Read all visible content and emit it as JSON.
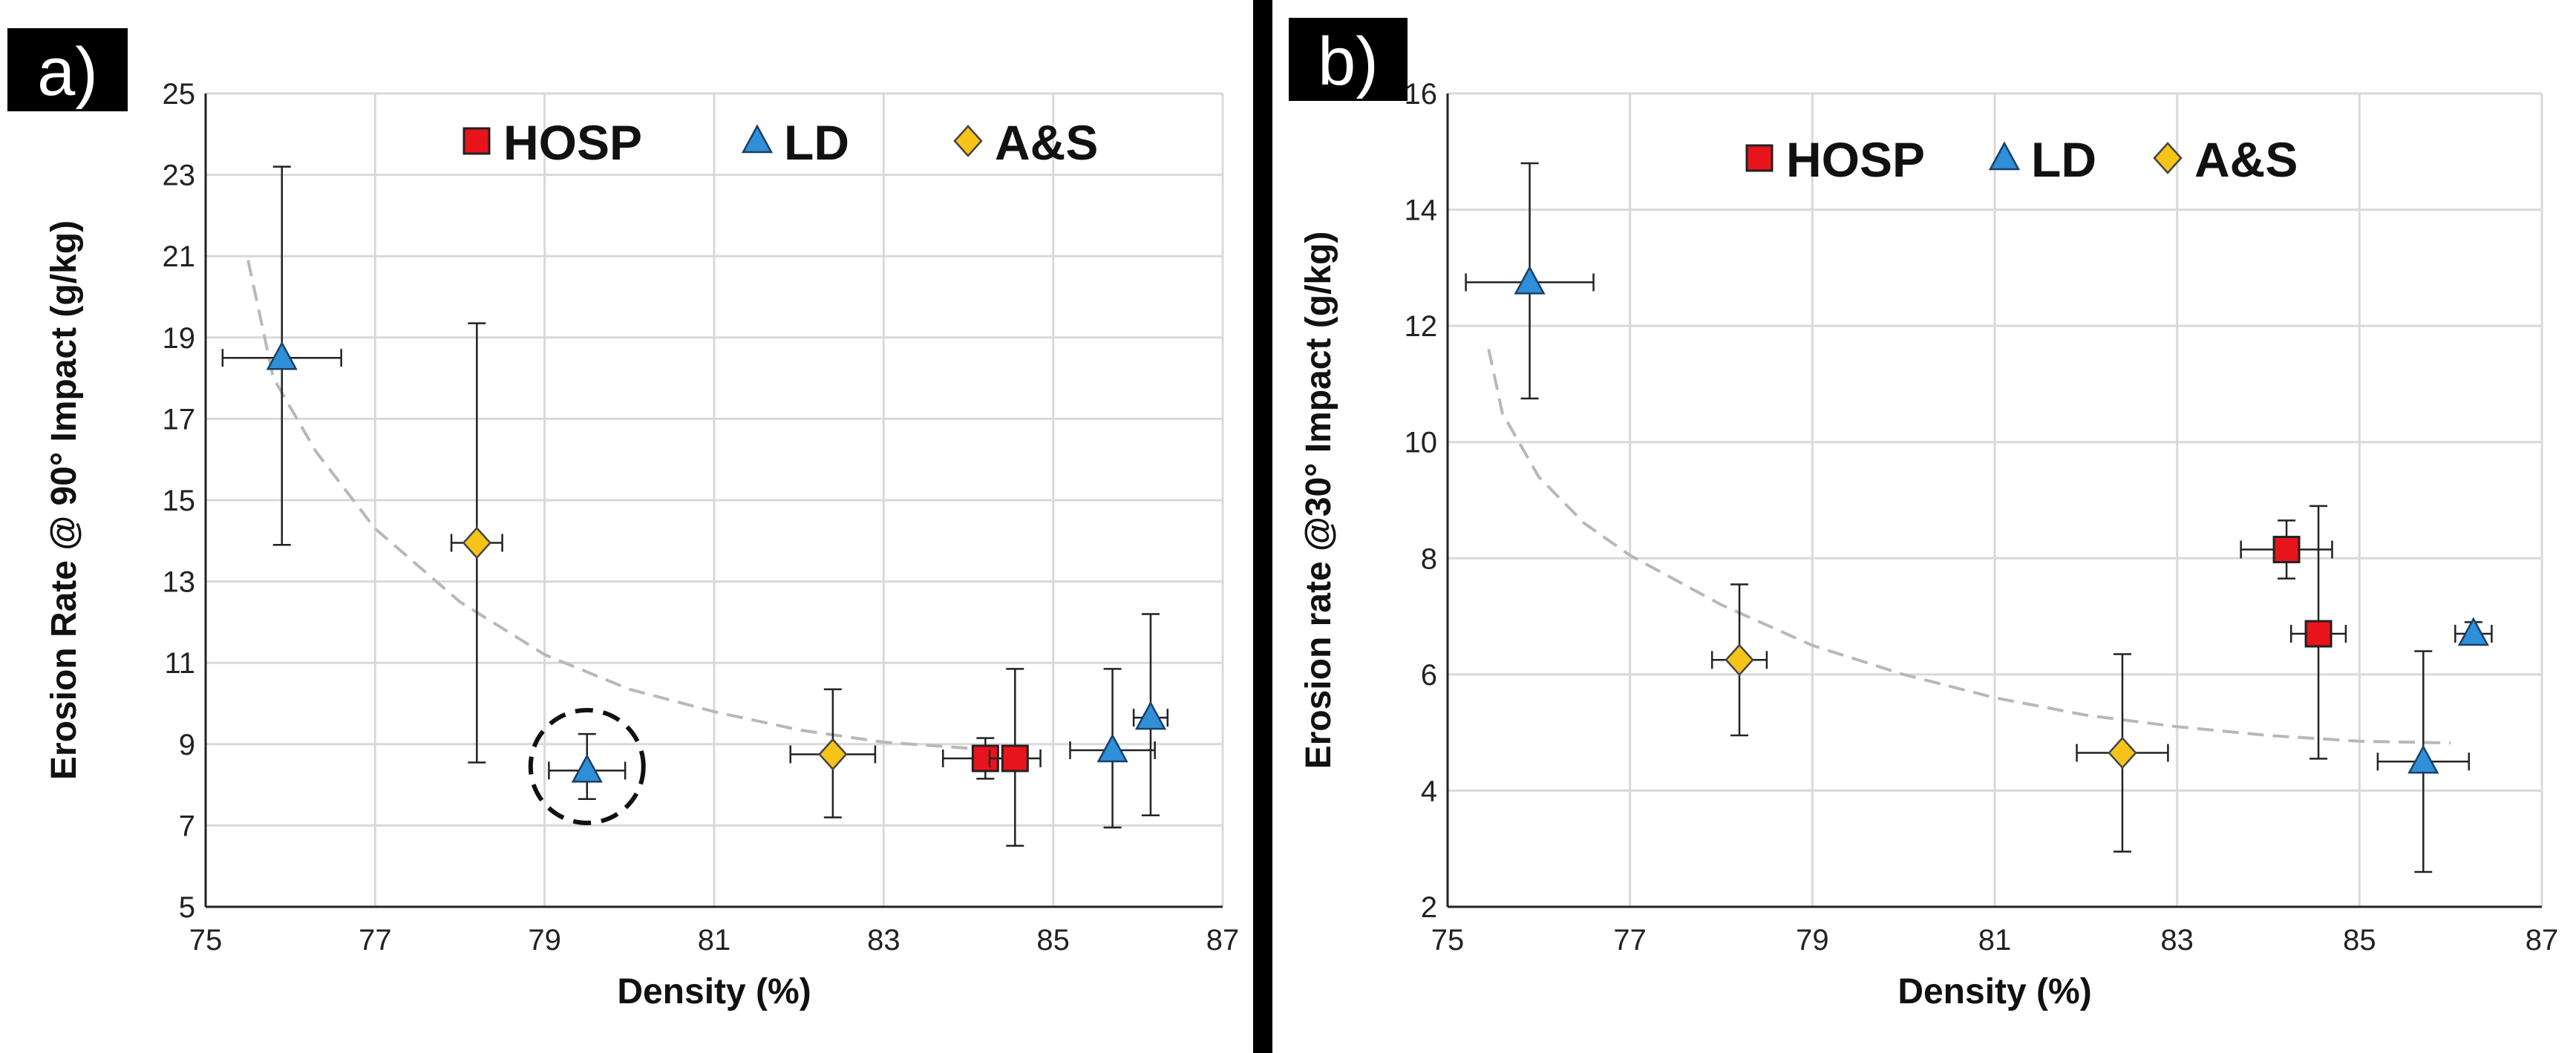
{
  "colors": {
    "HOSP": "#e8141c",
    "LD": "#2f8fd9",
    "A&S": "#f6c418",
    "grid": "#d9d9d9",
    "fit": "#b8b8b8",
    "divider": "#000000"
  },
  "chart_data": [
    {
      "panel_label": "a)",
      "type": "scatter",
      "xlabel": "Density (%)",
      "ylabel": "Erosion Rate @ 90° Impact (g/kg)",
      "xlim": [
        75,
        87
      ],
      "ylim": [
        5,
        25
      ],
      "xticks": [
        "75",
        "77",
        "79",
        "81",
        "83",
        "85",
        "87"
      ],
      "yticks": [
        "5",
        "7",
        "9",
        "11",
        "13",
        "15",
        "17",
        "19",
        "21",
        "23",
        "25"
      ],
      "grid": true,
      "legend_position": "top",
      "legend": [
        "HOSP",
        "LD",
        "A&S"
      ],
      "series": [
        {
          "name": "HOSP",
          "marker": "square",
          "points": [
            {
              "x": 84.2,
              "y": 8.65,
              "xerr": 0.5,
              "yerr_low": 0.5,
              "yerr_high": 0.5
            },
            {
              "x": 84.55,
              "y": 8.65,
              "xerr": 0.3,
              "yerr_low": 2.15,
              "yerr_high": 2.2
            }
          ]
        },
        {
          "name": "LD",
          "marker": "triangle",
          "points": [
            {
              "x": 75.9,
              "y": 18.5,
              "xerr": 0.7,
              "yerr_low": 4.6,
              "yerr_high": 4.7
            },
            {
              "x": 79.5,
              "y": 8.35,
              "xerr": 0.45,
              "yerr_low": 0.7,
              "yerr_high": 0.9
            },
            {
              "x": 85.7,
              "y": 8.85,
              "xerr": 0.5,
              "yerr_low": 1.9,
              "yerr_high": 2.0
            },
            {
              "x": 86.15,
              "y": 9.65,
              "xerr": 0.2,
              "yerr_low": 2.4,
              "yerr_high": 2.55
            }
          ]
        },
        {
          "name": "A&S",
          "marker": "diamond",
          "points": [
            {
              "x": 78.2,
              "y": 13.95,
              "xerr": 0.3,
              "yerr_low": 5.4,
              "yerr_high": 5.4
            },
            {
              "x": 82.4,
              "y": 8.75,
              "xerr": 0.5,
              "yerr_low": 1.55,
              "yerr_high": 1.6
            }
          ]
        }
      ],
      "fit_curve": {
        "style": "dashed",
        "points": [
          [
            75.5,
            20.9
          ],
          [
            75.8,
            18.0
          ],
          [
            76.3,
            16.2
          ],
          [
            77,
            14.3
          ],
          [
            78,
            12.5
          ],
          [
            79,
            11.2
          ],
          [
            80,
            10.35
          ],
          [
            81,
            9.8
          ],
          [
            82,
            9.35
          ],
          [
            83,
            9.05
          ],
          [
            84,
            8.9
          ],
          [
            84.5,
            8.85
          ]
        ]
      },
      "highlight_circle": {
        "x": 79.5,
        "y": 8.45,
        "style": "dashed"
      }
    },
    {
      "panel_label": "b)",
      "type": "scatter",
      "xlabel": "Density (%)",
      "ylabel": "Erosion rate @30° Impact (g/kg)",
      "xlim": [
        75,
        87
      ],
      "ylim": [
        2,
        16
      ],
      "xticks": [
        "75",
        "77",
        "79",
        "81",
        "83",
        "85",
        "87"
      ],
      "yticks": [
        "2",
        "4",
        "6",
        "8",
        "10",
        "12",
        "14",
        "16"
      ],
      "grid": true,
      "legend_position": "top",
      "legend": [
        "HOSP",
        "LD",
        "A&S"
      ],
      "series": [
        {
          "name": "HOSP",
          "marker": "square",
          "points": [
            {
              "x": 84.2,
              "y": 8.15,
              "xerr": 0.5,
              "yerr_low": 0.5,
              "yerr_high": 0.5
            },
            {
              "x": 84.55,
              "y": 6.7,
              "xerr": 0.3,
              "yerr_low": 2.15,
              "yerr_high": 2.2
            }
          ]
        },
        {
          "name": "LD",
          "marker": "triangle",
          "points": [
            {
              "x": 75.9,
              "y": 12.75,
              "xerr": 0.7,
              "yerr_low": 2.0,
              "yerr_high": 2.05
            },
            {
              "x": 85.7,
              "y": 4.5,
              "xerr": 0.5,
              "yerr_low": 1.9,
              "yerr_high": 1.9
            },
            {
              "x": 86.25,
              "y": 6.7,
              "xerr": 0.2,
              "yerr_low": 0.15,
              "yerr_high": 0.2
            }
          ]
        },
        {
          "name": "A&S",
          "marker": "diamond",
          "points": [
            {
              "x": 78.2,
              "y": 6.25,
              "xerr": 0.3,
              "yerr_low": 1.3,
              "yerr_high": 1.3
            },
            {
              "x": 82.4,
              "y": 4.65,
              "xerr": 0.5,
              "yerr_low": 1.7,
              "yerr_high": 1.7
            }
          ]
        }
      ],
      "fit_curve": {
        "style": "dashed",
        "points": [
          [
            75.45,
            11.6
          ],
          [
            75.6,
            10.5
          ],
          [
            76,
            9.4
          ],
          [
            76.5,
            8.6
          ],
          [
            77,
            8.05
          ],
          [
            78,
            7.2
          ],
          [
            79,
            6.5
          ],
          [
            80,
            6.0
          ],
          [
            81,
            5.6
          ],
          [
            82,
            5.3
          ],
          [
            83,
            5.1
          ],
          [
            84,
            4.95
          ],
          [
            85,
            4.85
          ],
          [
            86,
            4.82
          ]
        ]
      }
    }
  ]
}
